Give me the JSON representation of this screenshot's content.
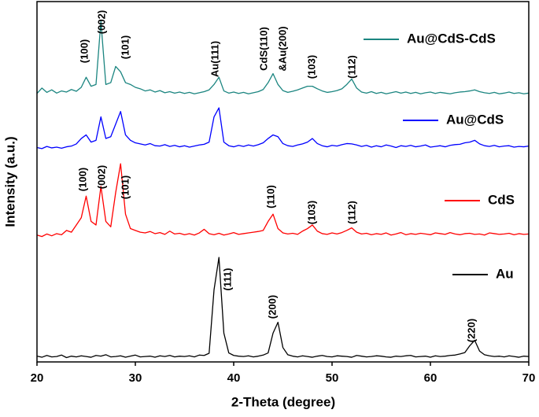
{
  "chart_data": {
    "type": "line",
    "xlabel": "2-Theta (degree)",
    "ylabel": "Intensity (a.u.)",
    "xlim": [
      20,
      70
    ],
    "xticks": [
      20,
      30,
      40,
      50,
      60,
      70
    ],
    "ylim": [
      0,
      100
    ],
    "x": [
      20,
      20.5,
      21,
      21.5,
      22,
      22.5,
      23,
      23.5,
      24,
      24.5,
      25,
      25.5,
      26,
      26.5,
      27,
      27.5,
      28,
      28.5,
      29,
      29.5,
      30,
      30.5,
      31,
      31.5,
      32,
      32.5,
      33,
      33.5,
      34,
      34.5,
      35,
      35.5,
      36,
      36.5,
      37,
      37.5,
      38,
      38.5,
      39,
      39.5,
      40,
      40.5,
      41,
      41.5,
      42,
      42.5,
      43,
      43.5,
      44,
      44.5,
      45,
      45.5,
      46,
      46.5,
      47,
      47.5,
      48,
      48.5,
      49,
      49.5,
      50,
      50.5,
      51,
      51.5,
      52,
      52.5,
      53,
      53.5,
      54,
      54.5,
      55,
      55.5,
      56,
      56.5,
      57,
      57.5,
      58,
      58.5,
      59,
      59.5,
      60,
      60.5,
      61,
      61.5,
      62,
      62.5,
      63,
      63.5,
      64,
      64.5,
      65,
      65.5,
      66,
      66.5,
      67,
      67.5,
      68,
      68.5,
      69,
      69.5,
      70
    ],
    "series": [
      {
        "name": "Au@CdS-CdS",
        "color": "#1b8580",
        "values": [
          74.5,
          76,
          74.8,
          75.5,
          74.6,
          75.2,
          74.9,
          75.6,
          75.1,
          76.2,
          79,
          76.5,
          77,
          94.5,
          77,
          77.5,
          82,
          80.5,
          77.5,
          77,
          76.2,
          75.8,
          75.2,
          75.5,
          74.9,
          75.3,
          74.7,
          75.0,
          74.6,
          74.9,
          74.5,
          74.8,
          74.4,
          74.7,
          75.0,
          75.5,
          77,
          79,
          75.2,
          74.6,
          74.9,
          74.5,
          74.8,
          74.4,
          74.7,
          75.0,
          75.6,
          77.5,
          80,
          77,
          75.3,
          74.8,
          75.1,
          75.5,
          76,
          76.5,
          76.5,
          75.8,
          75.2,
          74.8,
          75.0,
          75.3,
          75.8,
          77,
          78.5,
          76,
          74.9,
          74.6,
          75.0,
          74.5,
          74.8,
          74.4,
          74.7,
          75.0,
          74.6,
          74.9,
          74.5,
          74.8,
          74.4,
          74.7,
          74.9,
          74.5,
          74.8,
          74.6,
          74.4,
          74.7,
          74.9,
          75.0,
          75.2,
          75.5,
          75,
          74.7,
          74.5,
          74.8,
          74.4,
          74.6,
          74.9,
          74.5,
          74.7,
          74.4,
          74.6
        ]
      },
      {
        "name": "Au@CdS",
        "color": "#0000ff",
        "values": [
          59.5,
          59.2,
          59.8,
          59.4,
          59.6,
          59.3,
          59.7,
          59.9,
          60.5,
          62,
          63,
          61,
          61.5,
          68,
          62,
          62.5,
          66,
          69.5,
          63,
          61.5,
          60.8,
          60.5,
          60.2,
          60.6,
          60.0,
          59.9,
          60.3,
          59.8,
          60.1,
          59.7,
          60.0,
          59.6,
          59.9,
          60.2,
          60.4,
          61,
          68,
          70.5,
          61,
          60.0,
          59.7,
          60.1,
          59.8,
          60.2,
          59.9,
          60.3,
          60.8,
          62,
          63,
          62.5,
          60.6,
          60.0,
          59.8,
          60.2,
          60.5,
          61,
          62,
          60.6,
          60.0,
          59.7,
          60.1,
          59.9,
          60.3,
          60.6,
          60.5,
          60.2,
          59.8,
          60.1,
          59.6,
          60.0,
          59.7,
          60.2,
          59.9,
          59.5,
          60.0,
          59.8,
          60.1,
          59.7,
          59.9,
          60.2,
          59.6,
          59.8,
          60.0,
          59.7,
          60.1,
          60.3,
          60.4,
          60.8,
          61,
          61.5,
          60.5,
          60.0,
          59.8,
          60.1,
          59.7,
          59.9,
          60.0,
          59.6,
          59.8,
          59.7,
          59.9
        ]
      },
      {
        "name": "CdS",
        "color": "#ff0000",
        "values": [
          35.2,
          34.8,
          35.5,
          35.0,
          35.6,
          35.3,
          36.5,
          36,
          38,
          40,
          46,
          39,
          38,
          48.7,
          39,
          37.5,
          47,
          55,
          41,
          37,
          36.5,
          36.0,
          35.8,
          36.2,
          35.6,
          35.9,
          35.4,
          36.3,
          35.5,
          35.7,
          35.3,
          35.6,
          35.2,
          35.8,
          36.8,
          35.6,
          35.3,
          35.7,
          35.2,
          35.5,
          35.9,
          35.4,
          35.6,
          35.8,
          36.0,
          36.2,
          36.5,
          39,
          41,
          37,
          35.8,
          35.5,
          35.7,
          35.4,
          36.3,
          37,
          38,
          36.3,
          35.6,
          35.4,
          35.8,
          35.5,
          35.9,
          36.5,
          37.2,
          36,
          35.5,
          35.7,
          35.3,
          35.6,
          35.4,
          35.8,
          35.2,
          35.5,
          35.9,
          35.3,
          35.6,
          35.4,
          35.7,
          35.5,
          35.3,
          35.8,
          35.6,
          35.4,
          35.9,
          35.5,
          35.3,
          35.6,
          35.7,
          35.4,
          35.5,
          35.2,
          35.8,
          35.6,
          35.4,
          35.5,
          35.7,
          35.3,
          35.6,
          35.4,
          35.5
        ]
      },
      {
        "name": "Au",
        "color": "#000000",
        "values": [
          1.6,
          1.3,
          1.8,
          1.4,
          1.5,
          1.9,
          1.2,
          1.6,
          1.4,
          1.7,
          1.5,
          1.3,
          1.8,
          1.6,
          2.0,
          1.4,
          1.5,
          1.7,
          1.3,
          1.6,
          1.9,
          1.4,
          1.5,
          1.6,
          1.3,
          1.7,
          1.5,
          1.8,
          1.4,
          1.6,
          1.5,
          1.7,
          1.4,
          1.9,
          1.8,
          2.4,
          20,
          29,
          8,
          2.5,
          1.8,
          1.6,
          1.5,
          1.7,
          1.4,
          1.6,
          1.9,
          2.5,
          8,
          11,
          4,
          2.0,
          1.6,
          1.4,
          1.7,
          1.5,
          1.3,
          1.6,
          1.8,
          1.5,
          1.4,
          1.7,
          1.6,
          1.5,
          1.3,
          1.8,
          1.6,
          1.4,
          1.5,
          1.7,
          1.6,
          1.4,
          1.3,
          1.6,
          1.5,
          1.7,
          1.8,
          1.4,
          1.5,
          1.6,
          1.3,
          1.7,
          1.5,
          1.6,
          1.8,
          1.9,
          2.2,
          2.6,
          4.5,
          6,
          3,
          2.0,
          1.7,
          1.5,
          1.6,
          1.4,
          1.7,
          1.5,
          1.3,
          1.6,
          1.5
        ]
      }
    ],
    "annotations": [
      "(100)",
      "(002)",
      "(101)",
      "Au(111)",
      "CdS(110)",
      "&Au(200)",
      "(103)",
      "(112)",
      "(100)",
      "(002)",
      "(101)",
      "(110)",
      "(103)",
      "(112)",
      "(111)",
      "(200)",
      "(220)"
    ]
  }
}
